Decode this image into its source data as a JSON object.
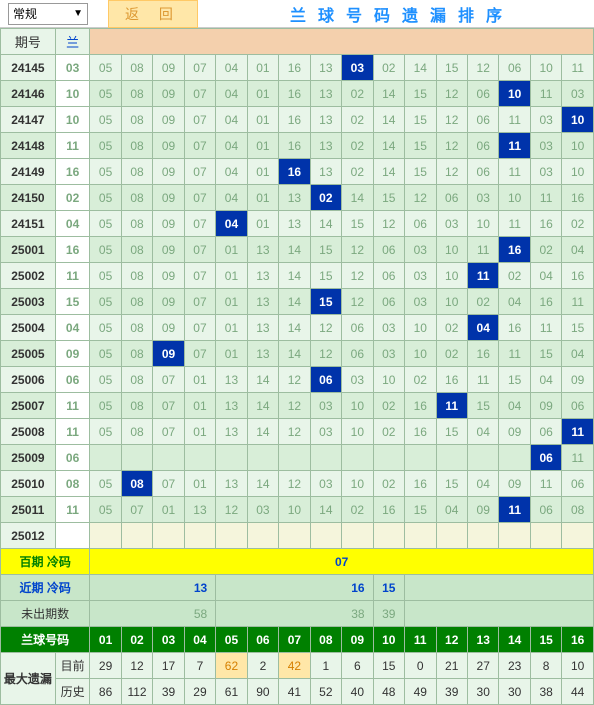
{
  "top": {
    "dropdown_label": "常规",
    "return_btn": "返 回",
    "title": "兰球号码遗漏排序"
  },
  "header": {
    "period": "期号",
    "blue": "兰"
  },
  "cold": {
    "hundred_label": "百期 冷码",
    "hundred_val": "07",
    "recent_label": "近期 冷码",
    "recent_val1": "13",
    "recent_val2": "16",
    "recent_val3": "15",
    "miss_label": "未出期数",
    "miss_val1": "58",
    "miss_val2": "38",
    "miss_val3": "39"
  },
  "ball_header": {
    "label": "兰球号码",
    "nums": [
      "01",
      "02",
      "03",
      "04",
      "05",
      "06",
      "07",
      "08",
      "09",
      "10",
      "11",
      "12",
      "13",
      "14",
      "15",
      "16"
    ]
  },
  "max_miss": {
    "label": "最大遗漏",
    "current_label": "目前",
    "history_label": "历史",
    "current": [
      "29",
      "12",
      "17",
      "7",
      "62",
      "2",
      "42",
      "1",
      "6",
      "15",
      "0",
      "21",
      "27",
      "23",
      "8",
      "10"
    ],
    "history": [
      "86",
      "112",
      "39",
      "29",
      "61",
      "90",
      "41",
      "52",
      "40",
      "48",
      "49",
      "39",
      "30",
      "30",
      "38",
      "44"
    ]
  },
  "rows": [
    {
      "period": "24145",
      "blue": "03",
      "cells": [
        "05",
        "08",
        "09",
        "07",
        "04",
        "01",
        "16",
        "13",
        "03",
        "02",
        "14",
        "15",
        "12",
        "06",
        "10",
        "11"
      ],
      "hit": 8
    },
    {
      "period": "24146",
      "blue": "10",
      "cells": [
        "05",
        "08",
        "09",
        "07",
        "04",
        "01",
        "16",
        "13",
        "02",
        "14",
        "15",
        "12",
        "06",
        "10",
        "11",
        "03"
      ],
      "hit": 13
    },
    {
      "period": "24147",
      "blue": "10",
      "cells": [
        "05",
        "08",
        "09",
        "07",
        "04",
        "01",
        "16",
        "13",
        "02",
        "14",
        "15",
        "12",
        "06",
        "11",
        "03",
        "10"
      ],
      "hit": 15
    },
    {
      "period": "24148",
      "blue": "11",
      "cells": [
        "05",
        "08",
        "09",
        "07",
        "04",
        "01",
        "16",
        "13",
        "02",
        "14",
        "15",
        "12",
        "06",
        "11",
        "03",
        "10"
      ],
      "hit": 13
    },
    {
      "period": "24149",
      "blue": "16",
      "cells": [
        "05",
        "08",
        "09",
        "07",
        "04",
        "01",
        "16",
        "13",
        "02",
        "14",
        "15",
        "12",
        "06",
        "11",
        "03",
        "10"
      ],
      "hit": 6
    },
    {
      "period": "24150",
      "blue": "02",
      "cells": [
        "05",
        "08",
        "09",
        "07",
        "04",
        "01",
        "13",
        "02",
        "14",
        "15",
        "12",
        "06",
        "03",
        "10",
        "11",
        "16"
      ],
      "hit": 7
    },
    {
      "period": "24151",
      "blue": "04",
      "cells": [
        "05",
        "08",
        "09",
        "07",
        "04",
        "01",
        "13",
        "14",
        "15",
        "12",
        "06",
        "03",
        "10",
        "11",
        "16",
        "02"
      ],
      "hit": 4
    },
    {
      "period": "25001",
      "blue": "16",
      "cells": [
        "05",
        "08",
        "09",
        "07",
        "01",
        "13",
        "14",
        "15",
        "12",
        "06",
        "03",
        "10",
        "11",
        "16",
        "02",
        "04"
      ],
      "hit": 13
    },
    {
      "period": "25002",
      "blue": "11",
      "cells": [
        "05",
        "08",
        "09",
        "07",
        "01",
        "13",
        "14",
        "15",
        "12",
        "06",
        "03",
        "10",
        "11",
        "02",
        "04",
        "16"
      ],
      "hit": 12
    },
    {
      "period": "25003",
      "blue": "15",
      "cells": [
        "05",
        "08",
        "09",
        "07",
        "01",
        "13",
        "14",
        "15",
        "12",
        "06",
        "03",
        "10",
        "02",
        "04",
        "16",
        "11"
      ],
      "hit": 7
    },
    {
      "period": "25004",
      "blue": "04",
      "cells": [
        "05",
        "08",
        "09",
        "07",
        "01",
        "13",
        "14",
        "12",
        "06",
        "03",
        "10",
        "02",
        "04",
        "16",
        "11",
        "15"
      ],
      "hit": 12
    },
    {
      "period": "25005",
      "blue": "09",
      "cells": [
        "05",
        "08",
        "09",
        "07",
        "01",
        "13",
        "14",
        "12",
        "06",
        "03",
        "10",
        "02",
        "16",
        "11",
        "15",
        "04"
      ],
      "hit": 2
    },
    {
      "period": "25006",
      "blue": "06",
      "cells": [
        "05",
        "08",
        "07",
        "01",
        "13",
        "14",
        "12",
        "06",
        "03",
        "10",
        "02",
        "16",
        "11",
        "15",
        "04",
        "09"
      ],
      "hit": 7
    },
    {
      "period": "25007",
      "blue": "11",
      "cells": [
        "05",
        "08",
        "07",
        "01",
        "13",
        "14",
        "12",
        "03",
        "10",
        "02",
        "16",
        "11",
        "15",
        "04",
        "09",
        "06"
      ],
      "hit": 11
    },
    {
      "period": "25008",
      "blue": "11",
      "cells": [
        "05",
        "08",
        "07",
        "01",
        "13",
        "14",
        "12",
        "03",
        "10",
        "02",
        "16",
        "15",
        "04",
        "09",
        "06",
        "11"
      ],
      "hit": 15
    },
    {
      "period": "25009",
      "blue": "06",
      "cells": [
        "",
        "",
        "",
        "",
        "",
        "",
        "",
        "",
        "",
        "",
        "",
        "",
        "",
        "",
        "06",
        "11"
      ],
      "hit": 14
    },
    {
      "period": "25010",
      "blue": "08",
      "cells": [
        "05",
        "08",
        "07",
        "01",
        "13",
        "14",
        "12",
        "03",
        "10",
        "02",
        "16",
        "15",
        "04",
        "09",
        "11",
        "06"
      ],
      "hit": 1
    },
    {
      "period": "25011",
      "blue": "11",
      "cells": [
        "05",
        "07",
        "01",
        "13",
        "12",
        "03",
        "10",
        "14",
        "02",
        "16",
        "15",
        "04",
        "09",
        "11",
        "06",
        "08"
      ],
      "hit": 13
    },
    {
      "period": "25012",
      "blue": "",
      "cells": [
        "",
        "",
        "",
        "",
        "",
        "",
        "",
        "",
        "",
        "",
        "",
        "",
        "",
        "",
        "",
        ""
      ],
      "hit": -1
    }
  ],
  "style": {
    "hit_bg": "#0033aa",
    "hit_fg": "#ffffff",
    "row_bg": "#e8f5e9",
    "row_alt_bg": "#d8eed8",
    "border": "#9dbda0",
    "blue_text": "#0044cc",
    "yellow": "#ffff00",
    "dark_green": "#008000",
    "orange_bg": "#ffe7a8",
    "orange_fg": "#d68000"
  }
}
